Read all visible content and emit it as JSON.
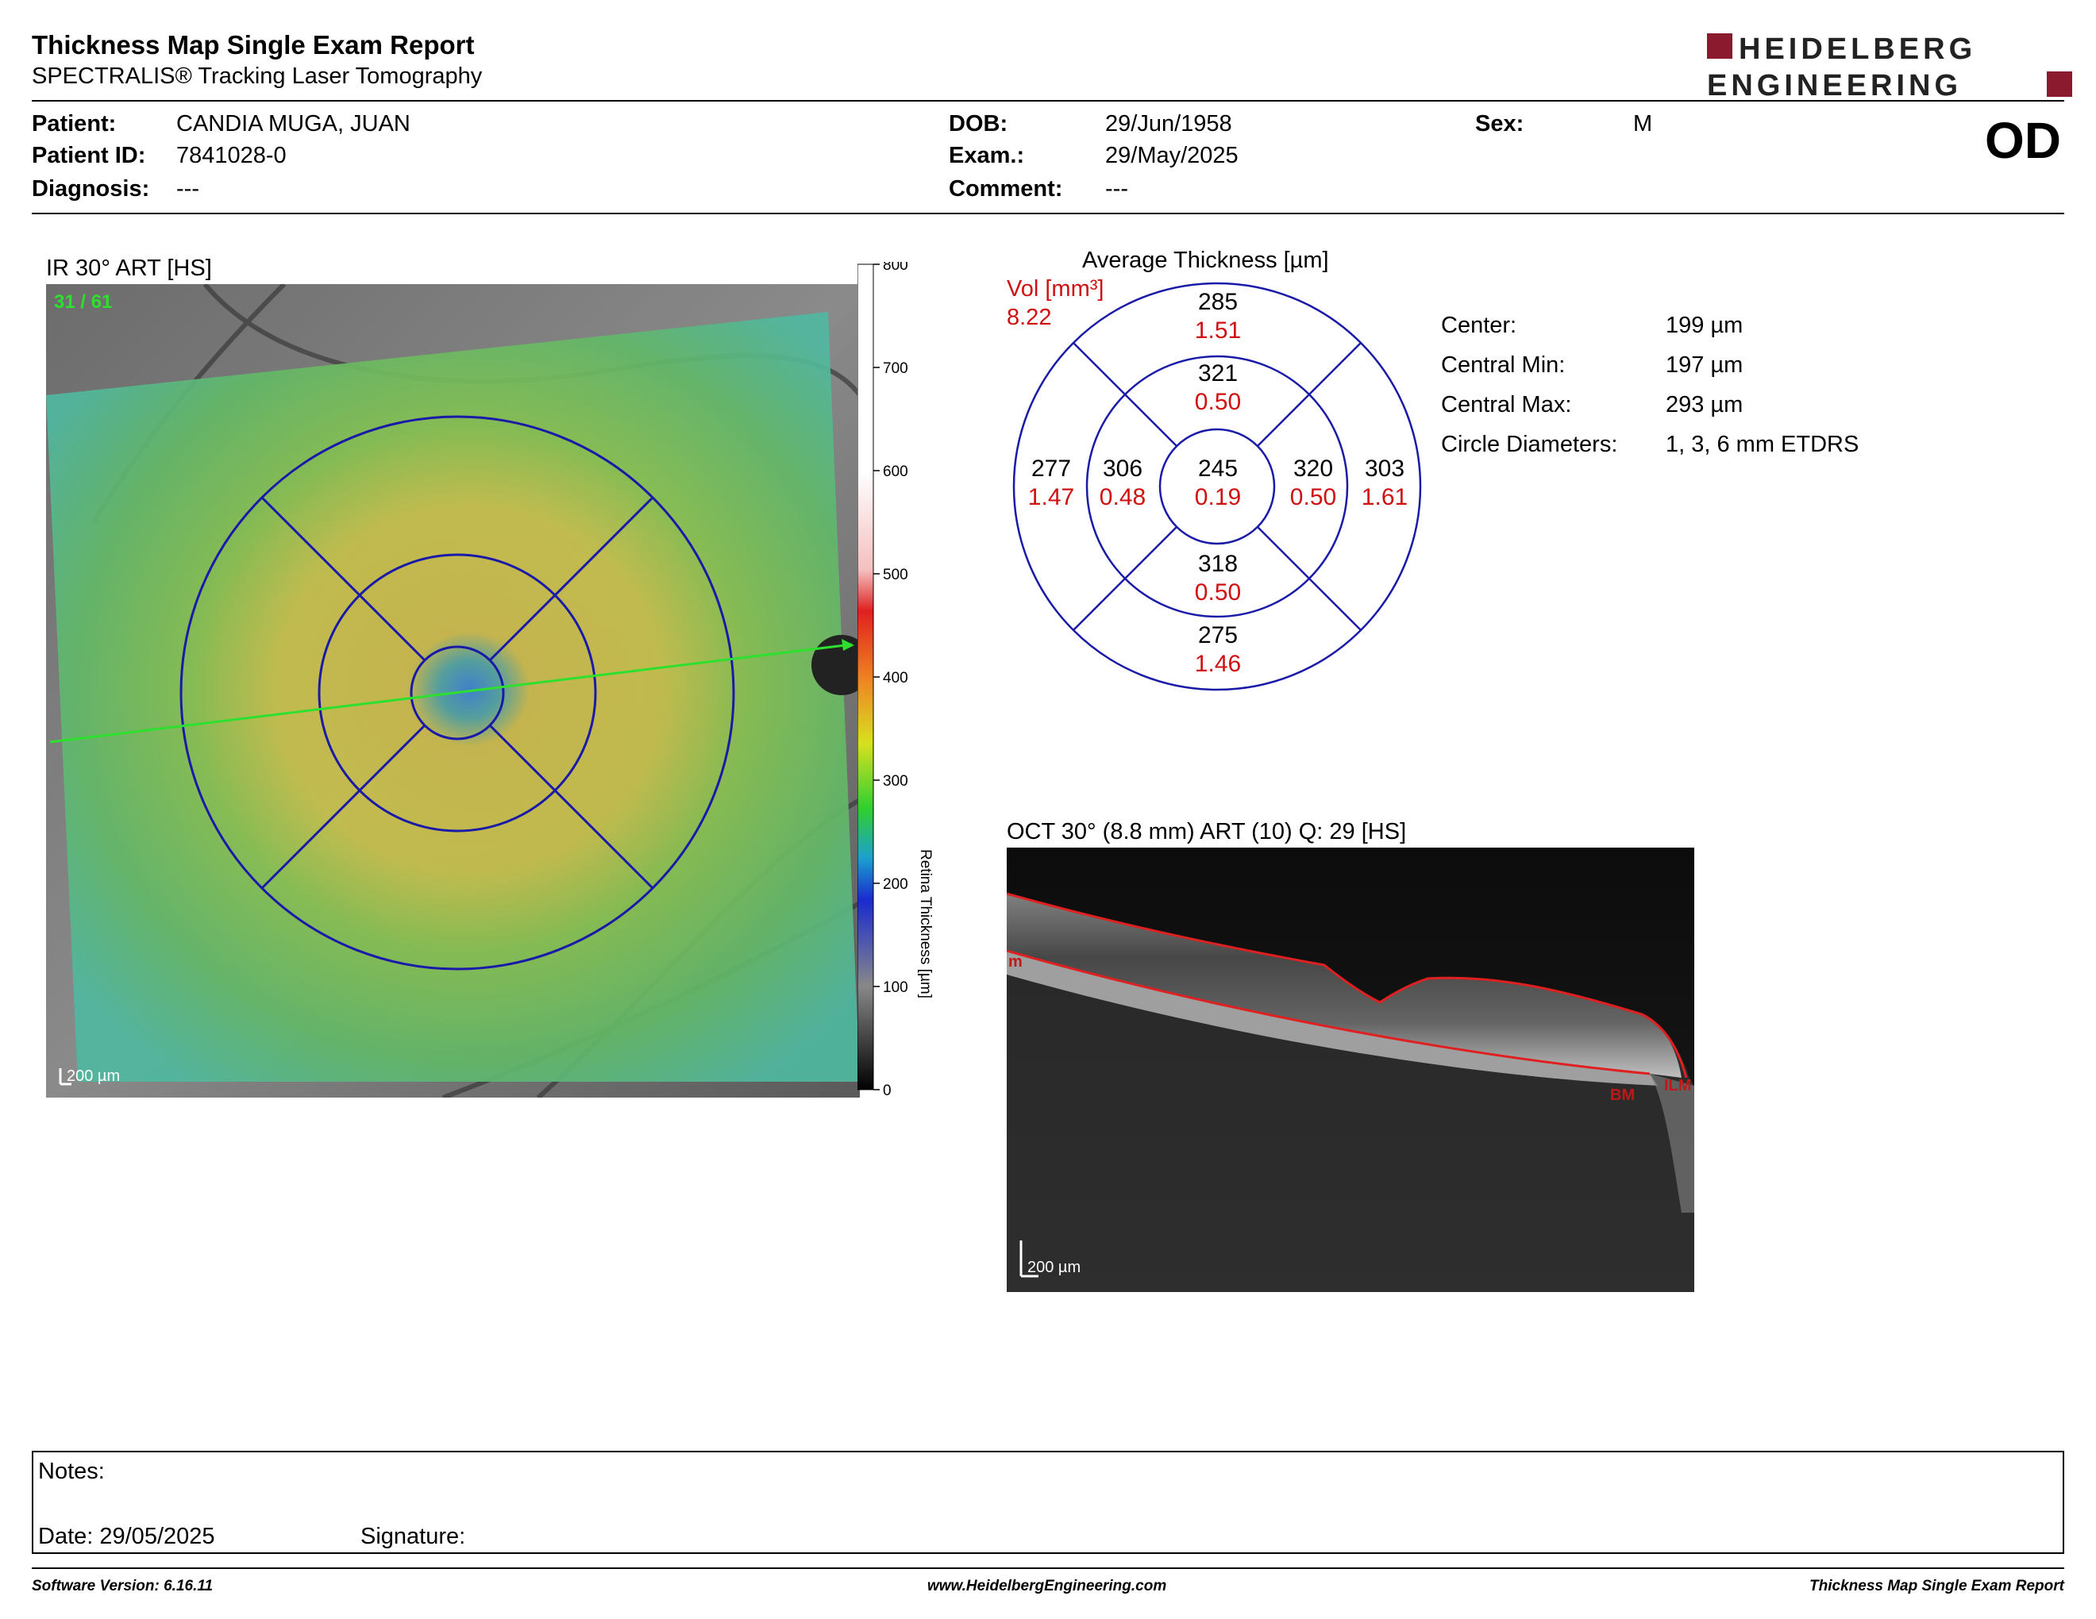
{
  "header": {
    "title": "Thickness Map Single Exam Report",
    "subtitle": "SPECTRALIS® Tracking Laser Tomography",
    "logo_line1": "HEIDELBERG",
    "logo_line2": "ENGINEERING",
    "brand_color": "#8b1a2e"
  },
  "patient": {
    "patient_label": "Patient:",
    "patient_value": "CANDIA MUGA, JUAN",
    "id_label": "Patient ID:",
    "id_value": "7841028-0",
    "diagnosis_label": "Diagnosis:",
    "diagnosis_value": "---",
    "dob_label": "DOB:",
    "dob_value": "29/Jun/1958",
    "exam_label": "Exam.:",
    "exam_value": "29/May/2025",
    "comment_label": "Comment:",
    "comment_value": "---",
    "sex_label": "Sex:",
    "sex_value": "M",
    "eye": "OD"
  },
  "ir_image": {
    "title": "IR 30° ART [HS]",
    "frame_label": "31 / 61",
    "scale_label": "200 µm"
  },
  "colorbar": {
    "ticks": [
      "800",
      "700",
      "600",
      "500",
      "400",
      "300",
      "200",
      "100",
      "0"
    ],
    "label": "Retina Thickness [µm]"
  },
  "etdrs": {
    "title": "Average Thickness [µm]",
    "vol_label": "Vol [mm³]",
    "vol_total": "8.22",
    "center": {
      "thickness": "245",
      "volume": "0.19"
    },
    "inner_superior": {
      "thickness": "321",
      "volume": "0.50"
    },
    "inner_nasal": {
      "thickness": "306",
      "volume": "0.48"
    },
    "inner_temporal": {
      "thickness": "320",
      "volume": "0.50"
    },
    "inner_inferior": {
      "thickness": "318",
      "volume": "0.50"
    },
    "outer_superior": {
      "thickness": "285",
      "volume": "1.51"
    },
    "outer_nasal": {
      "thickness": "277",
      "volume": "1.47"
    },
    "outer_temporal": {
      "thickness": "303",
      "volume": "1.61"
    },
    "outer_inferior": {
      "thickness": "275",
      "volume": "1.46"
    },
    "value_color": "#d01010",
    "ring_color": "#1a1aa8"
  },
  "stats": {
    "center_label": "Center:",
    "center_value": "199 µm",
    "min_label": "Central Min:",
    "min_value": "197 µm",
    "max_label": "Central Max:",
    "max_value": "293 µm",
    "diam_label": "Circle Diameters:",
    "diam_value": "1, 3, 6 mm ETDRS"
  },
  "oct": {
    "title": "OCT 30° (8.8 mm) ART (10) Q: 29 [HS]",
    "scale_label": "200 µm",
    "label_ilm": "ILM",
    "label_bm": "BM",
    "label_ilm_left": "m"
  },
  "notes": {
    "notes_label": "Notes:",
    "date_label": "Date: 29/05/2025",
    "signature_label": "Signature:"
  },
  "footer": {
    "software": "Software Version: 6.16.11",
    "website": "www.HeidelbergEngineering.com",
    "report_name": "Thickness Map Single Exam Report"
  }
}
